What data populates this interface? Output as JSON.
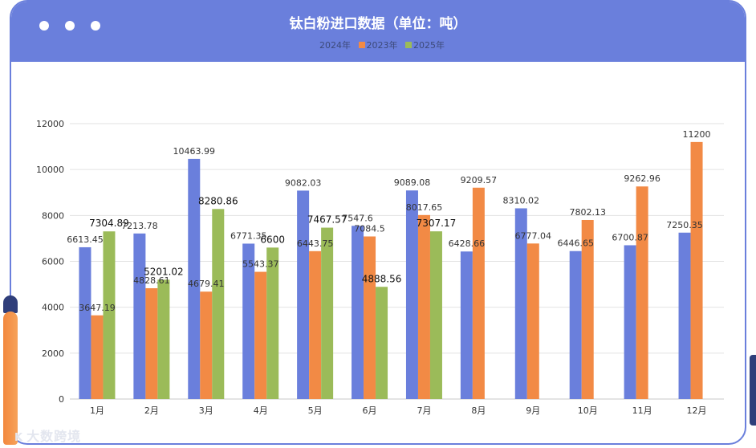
{
  "chart_data": {
    "type": "bar",
    "title": "钛白粉进口数据（单位：吨）",
    "categories": [
      "1月",
      "2月",
      "3月",
      "4月",
      "5月",
      "6月",
      "7月",
      "8月",
      "9月",
      "10月",
      "11月",
      "12月"
    ],
    "series": [
      {
        "name": "2024年",
        "color": "#6a7fdc",
        "values": [
          6613.45,
          7213.78,
          10463.99,
          6771.35,
          9082.03,
          7547.6,
          9089.08,
          6428.66,
          8310.02,
          6446.65,
          6700.87,
          7250.35
        ],
        "labels": [
          "6613.45",
          "7213.78",
          "10463.99",
          "6771.35",
          "9082.03",
          "7547.6",
          "9089.08",
          "6428.66",
          "8310.02",
          "6446.65",
          "6700.87",
          "7250.35"
        ]
      },
      {
        "name": "2023年",
        "color": "#f28a45",
        "values": [
          3647.19,
          4828.61,
          4679.41,
          5543.37,
          6443.75,
          7084.5,
          8017.65,
          9209.57,
          6777.04,
          7802.13,
          9262.96,
          11200
        ],
        "labels": [
          "3647.19",
          "4828.61",
          "4679.41",
          "5543.37",
          "6443.75",
          "7084.5",
          "8017.65",
          "9209.57",
          "6777.04",
          "7802.13",
          "9262.96",
          "11200"
        ]
      },
      {
        "name": "2025年",
        "color": "#9bbb59",
        "values": [
          7304.89,
          5201.02,
          8280.86,
          6600,
          7467.57,
          4888.56,
          7307.17,
          null,
          null,
          null,
          null,
          null
        ],
        "labels": [
          "7304.89",
          "5201.02",
          "8280.86",
          "6600",
          "7467.57",
          "4888.56",
          "7307.17",
          null,
          null,
          null,
          null,
          null
        ]
      }
    ],
    "ylim": [
      0,
      12000
    ],
    "yticks": [
      0,
      2000,
      4000,
      6000,
      8000,
      10000,
      12000
    ],
    "ytick_labels": [
      "0",
      "2000",
      "4000",
      "6000",
      "8000",
      "10000",
      "12000"
    ],
    "xlabel": "",
    "ylabel": "",
    "grid": true,
    "legend_position": "top-center"
  },
  "watermark": {
    "text": "大数跨境",
    "logo": "K"
  }
}
